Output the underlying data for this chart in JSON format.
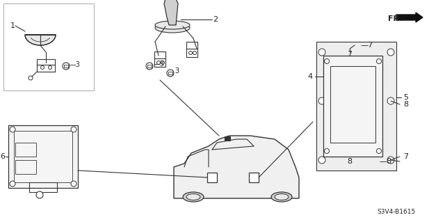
{
  "bg_color": "#ffffff",
  "diagram_code": "S3V4-B1615",
  "fr_label": "FR.",
  "parts": {
    "part1_label": "1",
    "part2_label": "2",
    "part3_label": "3",
    "part4_label": "4",
    "part5_label": "5",
    "part6_label": "6",
    "part7_label": "7",
    "part8_label": "8"
  },
  "line_color": "#333333",
  "text_color": "#222222",
  "font_size": 8,
  "title_font_size": 7
}
